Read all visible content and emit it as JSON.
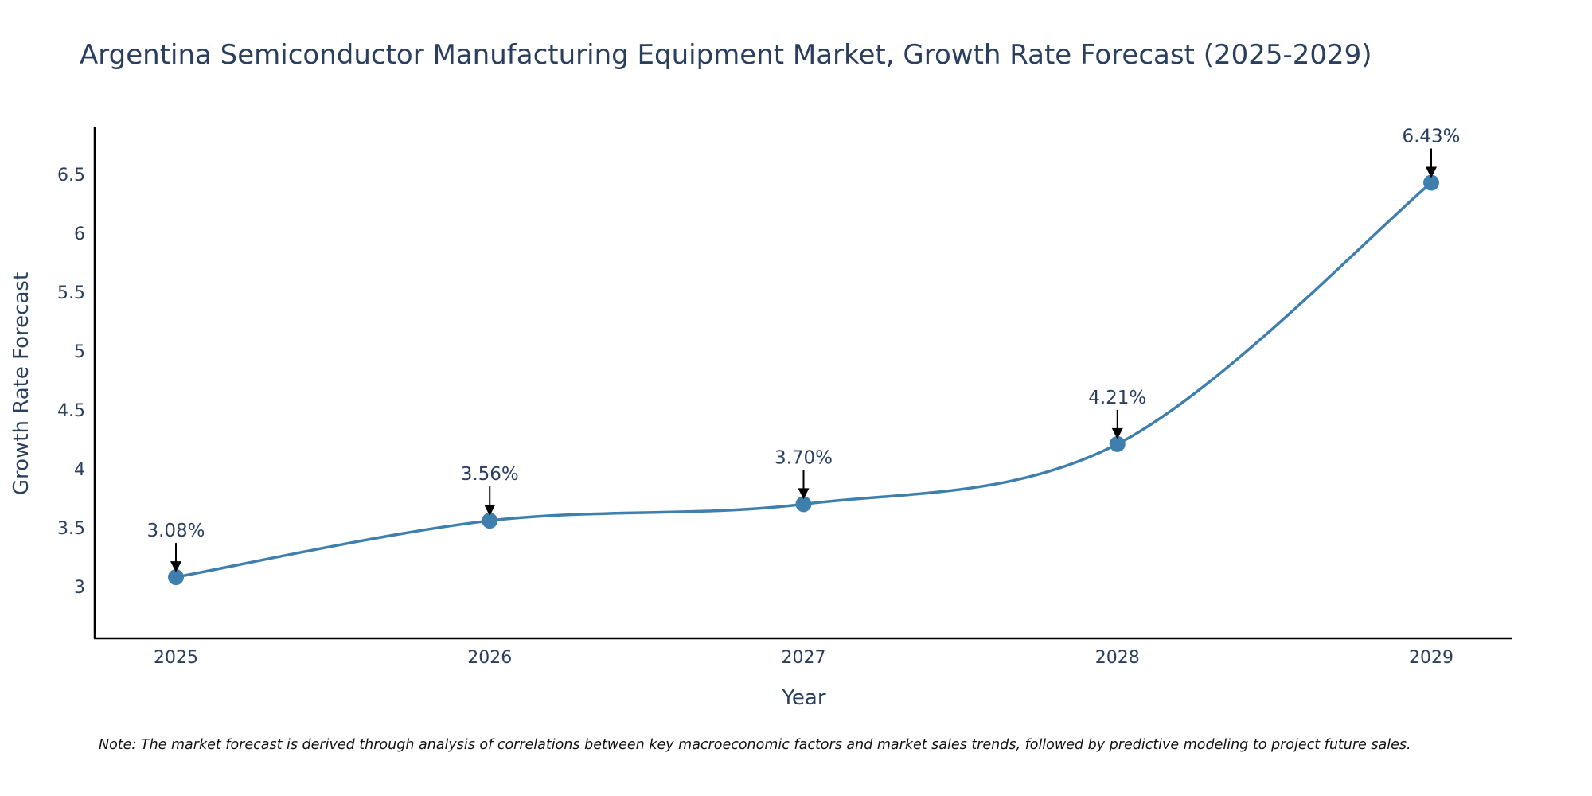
{
  "chart_data": {
    "type": "line",
    "title": "Argentina Semiconductor Manufacturing Equipment Market, Growth Rate Forecast (2025-2029)",
    "xlabel": "Year",
    "ylabel": "Growth Rate Forecast",
    "categories": [
      "2025",
      "2026",
      "2027",
      "2028",
      "2029"
    ],
    "series": [
      {
        "name": "Growth Rate Forecast",
        "values": [
          3.08,
          3.56,
          3.7,
          4.21,
          6.43
        ],
        "color": "#3f7fad"
      }
    ],
    "data_labels": [
      "3.08%",
      "3.56%",
      "3.70%",
      "4.21%",
      "6.43%"
    ],
    "y_ticks": [
      3,
      3.5,
      4,
      4.5,
      5,
      5.5,
      6,
      6.5
    ],
    "y_tick_labels": [
      "3",
      "3.5",
      "4",
      "4.5",
      "5",
      "5.5",
      "6",
      "6.5"
    ],
    "ylim": [
      2.56,
      6.9
    ],
    "grid": false,
    "line_shape": "spline",
    "axis_color": "#000000",
    "text_color": "#2a3f5f"
  },
  "note": "Note: The market forecast is derived through analysis of correlations between key macroeconomic factors and market sales trends, followed by predictive modeling to project future sales."
}
